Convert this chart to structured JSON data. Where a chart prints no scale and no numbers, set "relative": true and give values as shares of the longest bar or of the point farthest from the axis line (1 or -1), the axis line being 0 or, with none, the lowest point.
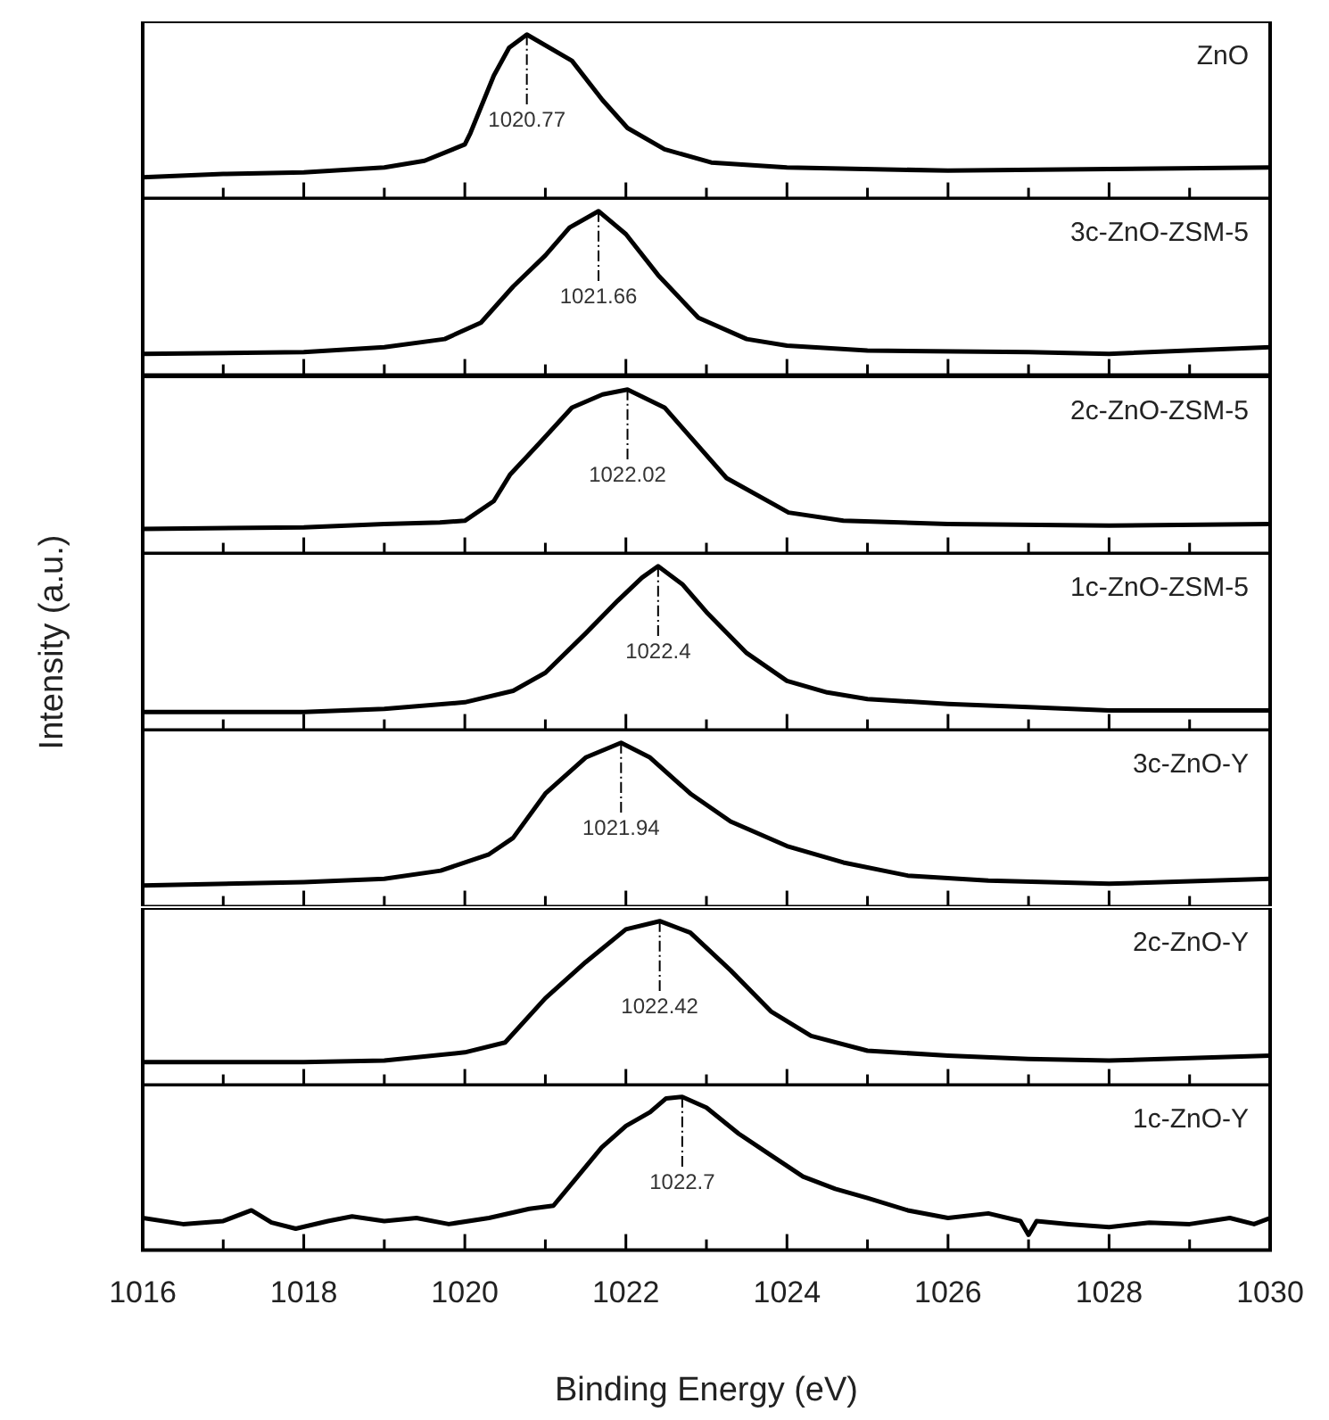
{
  "chart_data": [
    {
      "type": "line",
      "relative": true,
      "xlim": [
        1016,
        1030
      ],
      "xticks": [
        1016,
        {
          "value": 1017,
          "label": null
        },
        1018,
        {
          "value": 1019,
          "label": null
        },
        1020,
        {
          "value": 1021,
          "label": null
        },
        1022,
        {
          "value": 1023,
          "label": null
        },
        1024,
        {
          "value": 1025,
          "label": null
        },
        1026,
        {
          "value": 1027,
          "label": null
        },
        1028,
        {
          "value": 1029,
          "label": null
        },
        1030
      ],
      "tick_labels": false,
      "annotations": [
        {
          "text": "1020.77",
          "x": 1020.77,
          "y": 1
        }
      ],
      "series": [
        {
          "name": "ZnO",
          "color": "#000000",
          "x": [
            1016,
            1017,
            1018,
            1019,
            1019.5,
            1020,
            1020.07,
            1020.36,
            1020.55,
            1020.77,
            1021.33,
            1021.71,
            1022.02,
            1022.48,
            1023.06,
            1024,
            1026,
            1028,
            1030
          ],
          "values": [
            0.13,
            0.15,
            0.16,
            0.19,
            0.23,
            0.33,
            0.4,
            0.75,
            0.92,
            1,
            0.84,
            0.6,
            0.43,
            0.3,
            0.22,
            0.19,
            0.17,
            0.18,
            0.19
          ]
        }
      ]
    },
    {
      "type": "line",
      "relative": true,
      "xlim": [
        1016,
        1030
      ],
      "xticks": [
        1016,
        {
          "value": 1017,
          "label": null
        },
        1018,
        {
          "value": 1019,
          "label": null
        },
        1020,
        {
          "value": 1021,
          "label": null
        },
        1022,
        {
          "value": 1023,
          "label": null
        },
        1024,
        {
          "value": 1025,
          "label": null
        },
        1026,
        {
          "value": 1027,
          "label": null
        },
        1028,
        {
          "value": 1029,
          "label": null
        },
        1030
      ],
      "tick_labels": false,
      "annotations": [
        {
          "text": "1021.66",
          "x": 1021.66,
          "y": 1
        }
      ],
      "series": [
        {
          "name": "3c-ZnO-ZSM-5",
          "color": "#000000",
          "x": [
            1016,
            1018,
            1019,
            1019.75,
            1020.2,
            1020.6,
            1021,
            1021.3,
            1021.66,
            1022,
            1022.4,
            1022.9,
            1023.5,
            1024,
            1025,
            1027,
            1028,
            1030
          ],
          "values": [
            0.13,
            0.14,
            0.17,
            0.22,
            0.32,
            0.54,
            0.73,
            0.9,
            1,
            0.86,
            0.61,
            0.35,
            0.22,
            0.18,
            0.15,
            0.14,
            0.13,
            0.17
          ]
        }
      ]
    },
    {
      "type": "line",
      "relative": true,
      "xlim": [
        1016,
        1030
      ],
      "xticks": [
        1016,
        {
          "value": 1017,
          "label": null
        },
        1018,
        {
          "value": 1019,
          "label": null
        },
        1020,
        {
          "value": 1021,
          "label": null
        },
        1022,
        {
          "value": 1023,
          "label": null
        },
        1024,
        {
          "value": 1025,
          "label": null
        },
        1026,
        {
          "value": 1027,
          "label": null
        },
        1028,
        {
          "value": 1029,
          "label": null
        },
        1030
      ],
      "tick_labels": false,
      "annotations": [
        {
          "text": "1022.02",
          "x": 1022.02,
          "y": 1
        }
      ],
      "series": [
        {
          "name": "2c-ZnO-ZSM-5",
          "color": "#000000",
          "x": [
            1016,
            1018,
            1019,
            1019.69,
            1020,
            1020.36,
            1020.56,
            1020.94,
            1021.33,
            1021.71,
            1022.02,
            1022.48,
            1023.25,
            1024.02,
            1024.7,
            1026,
            1028,
            1030
          ],
          "values": [
            0.15,
            0.16,
            0.18,
            0.19,
            0.2,
            0.32,
            0.48,
            0.68,
            0.89,
            0.97,
            1,
            0.89,
            0.46,
            0.25,
            0.2,
            0.18,
            0.17,
            0.18
          ]
        }
      ]
    },
    {
      "type": "line",
      "relative": true,
      "ylabel": "Intensity (a.u.)",
      "xlim": [
        1016,
        1030
      ],
      "xticks": [
        1016,
        {
          "value": 1017,
          "label": null
        },
        1018,
        {
          "value": 1019,
          "label": null
        },
        1020,
        {
          "value": 1021,
          "label": null
        },
        1022,
        {
          "value": 1023,
          "label": null
        },
        1024,
        {
          "value": 1025,
          "label": null
        },
        1026,
        {
          "value": 1027,
          "label": null
        },
        1028,
        {
          "value": 1029,
          "label": null
        },
        1030
      ],
      "tick_labels": false,
      "annotations": [
        {
          "text": "1022.4",
          "x": 1022.4,
          "y": 1
        }
      ],
      "series": [
        {
          "name": "1c-ZnO-ZSM-5",
          "color": "#000000",
          "x": [
            1016,
            1018,
            1019,
            1020,
            1020.6,
            1021,
            1021.5,
            1021.9,
            1022.2,
            1022.4,
            1022.7,
            1023,
            1023.5,
            1024,
            1024.5,
            1025,
            1026,
            1027,
            1028,
            1030
          ],
          "values": [
            0.11,
            0.11,
            0.13,
            0.17,
            0.24,
            0.35,
            0.59,
            0.79,
            0.93,
            1,
            0.89,
            0.72,
            0.47,
            0.3,
            0.23,
            0.19,
            0.16,
            0.14,
            0.12,
            0.12
          ]
        }
      ]
    },
    {
      "type": "line",
      "relative": true,
      "xlim": [
        1016,
        1030
      ],
      "xticks": [
        1016,
        {
          "value": 1017,
          "label": null
        },
        1018,
        {
          "value": 1019,
          "label": null
        },
        1020,
        {
          "value": 1021,
          "label": null
        },
        1022,
        {
          "value": 1023,
          "label": null
        },
        1024,
        {
          "value": 1025,
          "label": null
        },
        1026,
        {
          "value": 1027,
          "label": null
        },
        1028,
        {
          "value": 1029,
          "label": null
        },
        1030
      ],
      "tick_labels": false,
      "annotations": [
        {
          "text": "1021.94",
          "x": 1021.94,
          "y": 1
        }
      ],
      "series": [
        {
          "name": "3c-ZnO-Y",
          "color": "#000000",
          "x": [
            1016,
            1018,
            1019,
            1019.7,
            1020.3,
            1020.6,
            1021,
            1021.5,
            1021.94,
            1022.3,
            1022.8,
            1023.3,
            1024,
            1024.7,
            1025.5,
            1026.5,
            1028,
            1030
          ],
          "values": [
            0.13,
            0.15,
            0.17,
            0.22,
            0.32,
            0.42,
            0.69,
            0.91,
            1,
            0.91,
            0.69,
            0.52,
            0.37,
            0.27,
            0.19,
            0.16,
            0.14,
            0.17
          ]
        }
      ]
    },
    {
      "type": "line",
      "relative": true,
      "xlim": [
        1016,
        1030
      ],
      "xticks": [
        1016,
        {
          "value": 1017,
          "label": null
        },
        1018,
        {
          "value": 1019,
          "label": null
        },
        1020,
        {
          "value": 1021,
          "label": null
        },
        1022,
        {
          "value": 1023,
          "label": null
        },
        1024,
        {
          "value": 1025,
          "label": null
        },
        1026,
        {
          "value": 1027,
          "label": null
        },
        1028,
        {
          "value": 1029,
          "label": null
        },
        1030
      ],
      "tick_labels": false,
      "annotations": [
        {
          "text": "1022.42",
          "x": 1022.42,
          "y": 1
        }
      ],
      "series": [
        {
          "name": "2c-ZnO-Y",
          "color": "#000000",
          "x": [
            1016,
            1018,
            1019,
            1020,
            1020.5,
            1021,
            1021.5,
            1022,
            1022.42,
            1022.8,
            1023.3,
            1023.8,
            1024.3,
            1025,
            1026,
            1027,
            1028,
            1030
          ],
          "values": [
            0.14,
            0.14,
            0.15,
            0.2,
            0.26,
            0.53,
            0.75,
            0.95,
            1,
            0.93,
            0.7,
            0.45,
            0.3,
            0.21,
            0.18,
            0.16,
            0.15,
            0.18
          ]
        }
      ]
    },
    {
      "type": "line",
      "relative": true,
      "xlabel": "Binding Energy (eV)",
      "xlim": [
        1016,
        1030
      ],
      "xticks": [
        1016,
        {
          "value": 1017,
          "label": null
        },
        1018,
        {
          "value": 1019,
          "label": null
        },
        1020,
        {
          "value": 1021,
          "label": null
        },
        1022,
        {
          "value": 1023,
          "label": null
        },
        1024,
        {
          "value": 1025,
          "label": null
        },
        1026,
        {
          "value": 1027,
          "label": null
        },
        1028,
        {
          "value": 1029,
          "label": null
        },
        1030
      ],
      "tick_labels": "x",
      "annotations": [
        {
          "text": "1022.7",
          "x": 1022.7,
          "y": 1
        }
      ],
      "series": [
        {
          "name": "1c-ZnO-Y",
          "color": "#000000",
          "x": [
            1016,
            1016.5,
            1017,
            1017.35,
            1017.6,
            1017.9,
            1018.3,
            1018.6,
            1019,
            1019.4,
            1019.8,
            1020.3,
            1020.8,
            1021.1,
            1021.4,
            1021.7,
            1022,
            1022.3,
            1022.5,
            1022.7,
            1023,
            1023.4,
            1023.8,
            1024.2,
            1024.6,
            1025,
            1025.5,
            1026,
            1026.5,
            1026.9,
            1027,
            1027.1,
            1027.5,
            1028,
            1028.5,
            1029,
            1029.5,
            1029.8,
            1030
          ],
          "values": [
            0.21,
            0.17,
            0.19,
            0.26,
            0.18,
            0.14,
            0.19,
            0.22,
            0.19,
            0.21,
            0.17,
            0.21,
            0.27,
            0.29,
            0.48,
            0.67,
            0.81,
            0.9,
            0.99,
            1,
            0.93,
            0.76,
            0.62,
            0.48,
            0.4,
            0.34,
            0.26,
            0.21,
            0.24,
            0.19,
            0.1,
            0.19,
            0.17,
            0.15,
            0.18,
            0.17,
            0.21,
            0.17,
            0.21
          ]
        }
      ]
    }
  ]
}
